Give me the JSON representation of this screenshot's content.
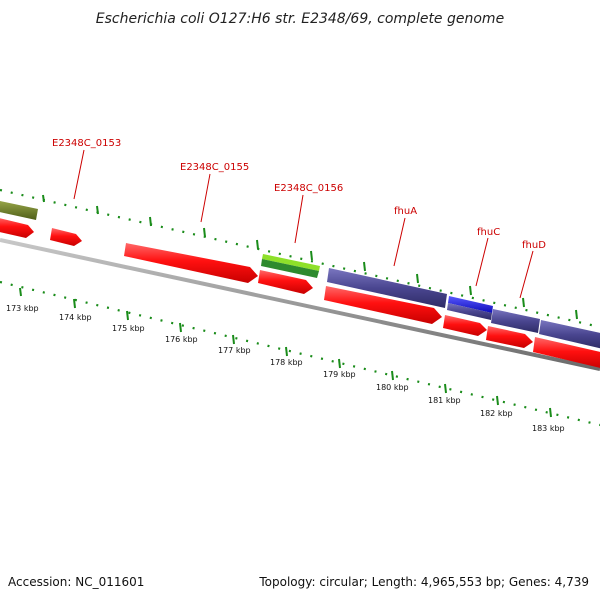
{
  "title": "Escherichia coli O127:H6 str. E2348/69, complete genome",
  "footer": {
    "accession": "Accession: NC_011601",
    "summary": "Topology: circular; Length: 4,965,553 bp; Genes: 4,739"
  },
  "gene_labels": [
    "E2348C_0153",
    "E2348C_0155",
    "E2348C_0156",
    "fhuA",
    "fhuC",
    "fhuD"
  ],
  "kbp_labels": [
    "173 kbp",
    "174 kbp",
    "175 kbp",
    "176 kbp",
    "177 kbp",
    "178 kbp",
    "179 kbp",
    "180 kbp",
    "181 kbp",
    "182 kbp",
    "183 kbp"
  ],
  "colors": {
    "cds": "#ff0000",
    "gene_blue_purple": "#4a4690",
    "gene_blue": "#1a1adf",
    "gene_olive": "#6b7e2a",
    "gene_green": "#8ee02a",
    "gene_dark_green": "#2e8a2e",
    "tick_green": "#1a8c1a",
    "label_red": "#cc0000",
    "backbone": "#8a8a8a"
  }
}
